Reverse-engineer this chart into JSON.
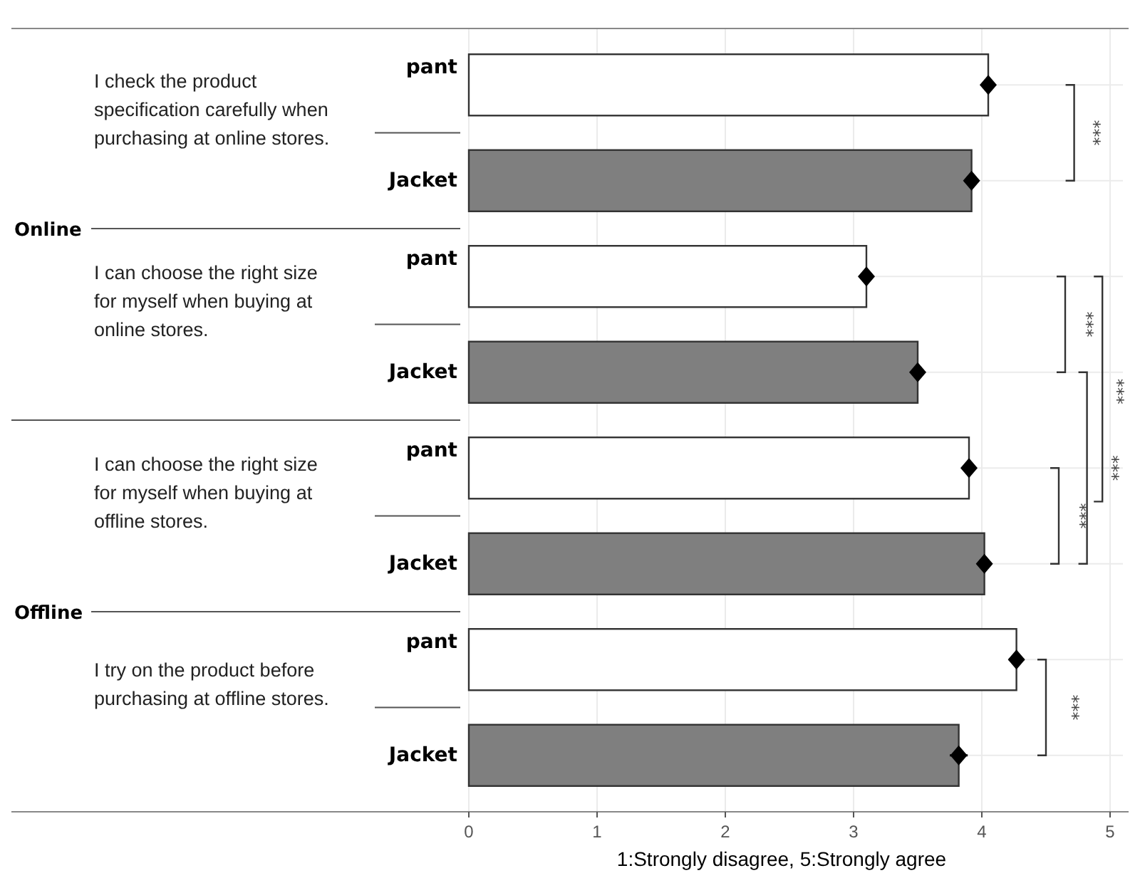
{
  "chart_data": {
    "type": "bar",
    "orientation": "horizontal",
    "xlabel": "1:Strongly disagree, 5:Strongly agree",
    "categories": [
      "pant",
      "Jacket",
      "pant",
      "Jacket",
      "pant",
      "Jacket",
      "pant",
      "Jacket"
    ],
    "series": [
      {
        "type": "bar",
        "colors": [
          "#ffffff",
          "#7f7f7f",
          "#ffffff",
          "#7f7f7f",
          "#ffffff",
          "#7f7f7f",
          "#ffffff",
          "#7f7f7f"
        ],
        "values": [
          4.05,
          3.92,
          3.1,
          3.5,
          3.9,
          4.02,
          4.27,
          3.82
        ]
      },
      {
        "type": "scatter",
        "color": "#000000",
        "marker": "diamond",
        "values": [
          4.05,
          3.92,
          3.1,
          3.5,
          3.9,
          4.02,
          4.27,
          3.82
        ],
        "errors": [
          0.05,
          0.05,
          0.05,
          0.04,
          0.05,
          0.05,
          0.06,
          0.07
        ]
      }
    ],
    "xlim": [
      0,
      5.1
    ],
    "xticks": [
      0,
      1,
      2,
      3,
      4,
      5
    ],
    "grid": true,
    "annotations": [
      "I check the product specification carefully when purchasing at online stores.",
      "I can choose the right size for myself when buying at online stores.",
      "I can choose the right size for myself when buying at offline stores.",
      "I try on the product before purchasing at offline stores.",
      "Online",
      "Offline",
      "***",
      "***",
      "***",
      "***",
      "***",
      "***"
    ]
  }
}
